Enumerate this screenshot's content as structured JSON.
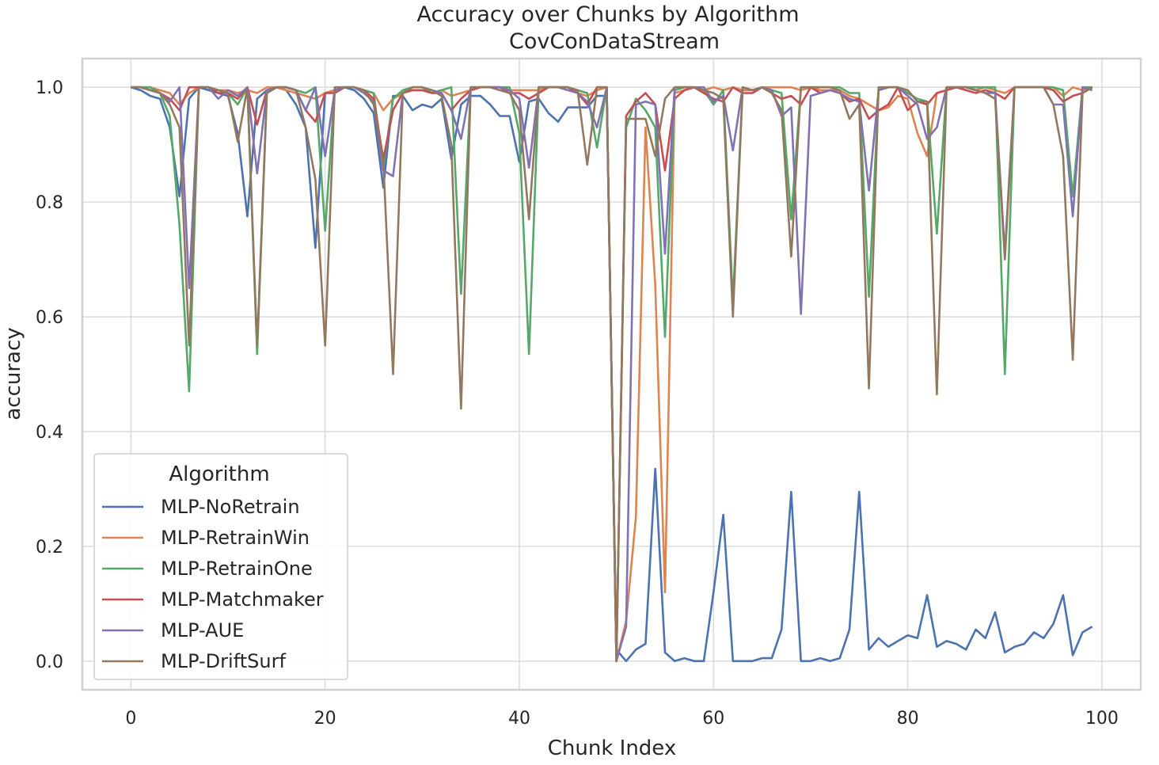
{
  "chart_data": {
    "type": "line",
    "title": "Accuracy over Chunks by Algorithm",
    "subtitle": "CovConDataStream",
    "xlabel": "Chunk Index",
    "ylabel": "accuracy",
    "xlim": [
      -5,
      104
    ],
    "ylim": [
      -0.05,
      1.05
    ],
    "xticks": [
      0,
      20,
      40,
      60,
      80,
      100
    ],
    "yticks": [
      0.0,
      0.2,
      0.4,
      0.6,
      0.8,
      1.0
    ],
    "xtick_labels": [
      "0",
      "20",
      "40",
      "60",
      "80",
      "100"
    ],
    "ytick_labels": [
      "0.0",
      "0.2",
      "0.4",
      "0.6",
      "0.8",
      "1.0"
    ],
    "grid": true,
    "legend": {
      "title": "Algorithm",
      "placement": "lower-left"
    },
    "series": [
      {
        "name": "MLP-NoRetrain",
        "color": "#4c72b0",
        "x": [
          0,
          1,
          2,
          3,
          4,
          5,
          6,
          7,
          8,
          9,
          10,
          11,
          12,
          13,
          14,
          15,
          16,
          17,
          18,
          19,
          20,
          21,
          22,
          23,
          24,
          25,
          26,
          27,
          28,
          29,
          30,
          31,
          32,
          33,
          34,
          35,
          36,
          37,
          38,
          39,
          40,
          41,
          42,
          43,
          44,
          45,
          46,
          47,
          48,
          49,
          50,
          51,
          52,
          53,
          54,
          55,
          56,
          57,
          58,
          59,
          60,
          61,
          62,
          63,
          64,
          65,
          66,
          67,
          68,
          69,
          70,
          71,
          72,
          73,
          74,
          75,
          76,
          77,
          78,
          79,
          80,
          81,
          82,
          83,
          84,
          85,
          86,
          87,
          88,
          89,
          90,
          91,
          92,
          93,
          94,
          95,
          96,
          97,
          98,
          99
        ],
        "values": [
          1.0,
          0.995,
          0.985,
          0.98,
          0.93,
          0.81,
          0.98,
          1.0,
          0.995,
          0.99,
          0.985,
          0.92,
          0.775,
          0.98,
          0.995,
          1.0,
          0.995,
          0.97,
          0.93,
          0.72,
          0.99,
          0.995,
          1.0,
          0.995,
          0.98,
          0.955,
          0.825,
          0.985,
          0.985,
          0.96,
          0.97,
          0.965,
          0.98,
          0.875,
          0.97,
          0.985,
          0.985,
          0.97,
          0.95,
          0.95,
          0.87,
          0.975,
          0.98,
          0.955,
          0.94,
          0.965,
          0.965,
          0.965,
          0.985,
          0.985,
          0.02,
          0.0,
          0.02,
          0.03,
          0.335,
          0.015,
          0.0,
          0.005,
          0.0,
          0.0,
          0.12,
          0.255,
          0.0,
          0.0,
          0.0,
          0.005,
          0.005,
          0.055,
          0.295,
          0.0,
          0.0,
          0.005,
          0.0,
          0.005,
          0.055,
          0.295,
          0.02,
          0.04,
          0.025,
          0.035,
          0.045,
          0.04,
          0.115,
          0.025,
          0.035,
          0.03,
          0.02,
          0.055,
          0.04,
          0.085,
          0.015,
          0.025,
          0.03,
          0.05,
          0.04,
          0.065,
          0.115,
          0.01,
          0.05,
          0.06
        ]
      },
      {
        "name": "MLP-RetrainWin",
        "color": "#dd8452",
        "x": [
          0,
          1,
          2,
          3,
          4,
          5,
          6,
          7,
          8,
          9,
          10,
          11,
          12,
          13,
          14,
          15,
          16,
          17,
          18,
          19,
          20,
          21,
          22,
          23,
          24,
          25,
          26,
          27,
          28,
          29,
          30,
          31,
          32,
          33,
          34,
          35,
          36,
          37,
          38,
          39,
          40,
          41,
          42,
          43,
          44,
          45,
          46,
          47,
          48,
          49,
          50,
          51,
          52,
          53,
          54,
          55,
          56,
          57,
          58,
          59,
          60,
          61,
          62,
          63,
          64,
          65,
          66,
          67,
          68,
          69,
          70,
          71,
          72,
          73,
          74,
          75,
          76,
          77,
          78,
          79,
          80,
          81,
          82,
          83,
          84,
          85,
          86,
          87,
          88,
          89,
          90,
          91,
          92,
          93,
          94,
          95,
          96,
          97,
          98,
          99
        ],
        "values": [
          1.0,
          1.0,
          1.0,
          0.995,
          0.99,
          0.97,
          0.99,
          1.0,
          1.0,
          0.995,
          0.995,
          0.99,
          0.995,
          0.99,
          1.0,
          1.0,
          0.995,
          0.99,
          0.985,
          0.98,
          0.99,
          0.995,
          1.0,
          1.0,
          0.995,
          0.99,
          0.96,
          0.98,
          0.99,
          0.995,
          0.995,
          0.99,
          0.995,
          0.985,
          0.99,
          0.995,
          1.0,
          1.0,
          1.0,
          0.995,
          0.995,
          0.995,
          0.995,
          1.0,
          1.0,
          1.0,
          0.99,
          0.985,
          0.995,
          1.0,
          0.0,
          0.07,
          0.25,
          0.93,
          0.655,
          0.12,
          0.99,
          0.995,
          1.0,
          0.995,
          1.0,
          0.995,
          1.0,
          0.995,
          0.995,
          1.0,
          1.0,
          1.0,
          1.0,
          0.995,
          1.0,
          0.995,
          0.995,
          0.995,
          0.985,
          0.98,
          0.97,
          0.96,
          0.965,
          0.985,
          0.98,
          0.92,
          0.88,
          0.99,
          0.995,
          1.0,
          1.0,
          0.995,
          1.0,
          0.995,
          0.99,
          1.0,
          1.0,
          1.0,
          1.0,
          1.0,
          0.985,
          1.0,
          0.995,
          1.0
        ]
      },
      {
        "name": "MLP-RetrainOne",
        "color": "#55a868",
        "x": [
          0,
          1,
          2,
          3,
          4,
          5,
          6,
          7,
          8,
          9,
          10,
          11,
          12,
          13,
          14,
          15,
          16,
          17,
          18,
          19,
          20,
          21,
          22,
          23,
          24,
          25,
          26,
          27,
          28,
          29,
          30,
          31,
          32,
          33,
          34,
          35,
          36,
          37,
          38,
          39,
          40,
          41,
          42,
          43,
          44,
          45,
          46,
          47,
          48,
          49,
          50,
          51,
          52,
          53,
          54,
          55,
          56,
          57,
          58,
          59,
          60,
          61,
          62,
          63,
          64,
          65,
          66,
          67,
          68,
          69,
          70,
          71,
          72,
          73,
          74,
          75,
          76,
          77,
          78,
          79,
          80,
          81,
          82,
          83,
          84,
          85,
          86,
          87,
          88,
          89,
          90,
          91,
          92,
          93,
          94,
          95,
          96,
          97,
          98,
          99
        ],
        "values": [
          1.0,
          1.0,
          1.0,
          0.99,
          0.95,
          0.76,
          0.47,
          1.0,
          1.0,
          0.995,
          0.99,
          0.97,
          1.0,
          0.535,
          0.99,
          1.0,
          1.0,
          0.995,
          0.99,
          1.0,
          0.75,
          1.0,
          1.0,
          1.0,
          0.995,
          0.99,
          0.86,
          0.98,
          0.995,
          1.0,
          1.0,
          0.99,
          0.995,
          1.0,
          0.64,
          1.0,
          1.0,
          1.0,
          1.0,
          1.0,
          0.92,
          0.535,
          1.0,
          1.0,
          1.0,
          1.0,
          0.995,
          0.99,
          0.895,
          1.0,
          0.0,
          0.93,
          0.98,
          0.96,
          0.93,
          0.565,
          0.995,
          1.0,
          1.0,
          0.995,
          0.97,
          0.995,
          0.625,
          1.0,
          0.995,
          1.0,
          0.995,
          0.99,
          0.77,
          1.0,
          1.0,
          1.0,
          1.0,
          1.0,
          0.99,
          0.99,
          0.635,
          0.995,
          1.0,
          1.0,
          0.99,
          0.98,
          0.975,
          0.745,
          1.0,
          1.0,
          1.0,
          1.0,
          1.0,
          1.0,
          0.5,
          1.0,
          1.0,
          1.0,
          1.0,
          1.0,
          0.995,
          0.81,
          1.0,
          1.0
        ]
      },
      {
        "name": "MLP-Matchmaker",
        "color": "#c44e52",
        "x": [
          0,
          1,
          2,
          3,
          4,
          5,
          6,
          7,
          8,
          9,
          10,
          11,
          12,
          13,
          14,
          15,
          16,
          17,
          18,
          19,
          20,
          21,
          22,
          23,
          24,
          25,
          26,
          27,
          28,
          29,
          30,
          31,
          32,
          33,
          34,
          35,
          36,
          37,
          38,
          39,
          40,
          41,
          42,
          43,
          44,
          45,
          46,
          47,
          48,
          49,
          50,
          51,
          52,
          53,
          54,
          55,
          56,
          57,
          58,
          59,
          60,
          61,
          62,
          63,
          64,
          65,
          66,
          67,
          68,
          69,
          70,
          71,
          72,
          73,
          74,
          75,
          76,
          77,
          78,
          79,
          80,
          81,
          82,
          83,
          84,
          85,
          86,
          87,
          88,
          89,
          90,
          91,
          92,
          93,
          94,
          95,
          96,
          97,
          98,
          99
        ],
        "values": [
          1.0,
          1.0,
          0.995,
          0.99,
          0.98,
          0.96,
          1.0,
          1.0,
          1.0,
          0.99,
          0.99,
          0.98,
          1.0,
          0.935,
          0.995,
          1.0,
          1.0,
          0.995,
          0.96,
          0.94,
          0.99,
          0.99,
          1.0,
          1.0,
          0.995,
          0.98,
          0.875,
          0.96,
          0.99,
          0.995,
          0.995,
          0.99,
          0.99,
          0.96,
          0.98,
          0.995,
          1.0,
          1.0,
          1.0,
          0.99,
          0.99,
          0.98,
          0.99,
          1.0,
          1.0,
          1.0,
          0.99,
          0.97,
          1.0,
          1.0,
          0.0,
          0.95,
          0.975,
          0.99,
          0.97,
          0.855,
          0.98,
          0.995,
          1.0,
          0.99,
          0.98,
          0.975,
          1.0,
          0.99,
          0.99,
          1.0,
          0.99,
          0.98,
          0.985,
          0.97,
          1.0,
          0.99,
          0.995,
          0.99,
          0.975,
          0.98,
          0.945,
          0.96,
          0.97,
          1.0,
          0.96,
          0.975,
          0.97,
          0.99,
          0.995,
          1.0,
          0.995,
          0.99,
          0.995,
          0.99,
          0.98,
          1.0,
          1.0,
          1.0,
          1.0,
          0.995,
          0.975,
          0.985,
          0.99,
          1.0
        ]
      },
      {
        "name": "MLP-AUE",
        "color": "#8172b3",
        "x": [
          0,
          1,
          2,
          3,
          4,
          5,
          6,
          7,
          8,
          9,
          10,
          11,
          12,
          13,
          14,
          15,
          16,
          17,
          18,
          19,
          20,
          21,
          22,
          23,
          24,
          25,
          26,
          27,
          28,
          29,
          30,
          31,
          32,
          33,
          34,
          35,
          36,
          37,
          38,
          39,
          40,
          41,
          42,
          43,
          44,
          45,
          46,
          47,
          48,
          49,
          50,
          51,
          52,
          53,
          54,
          55,
          56,
          57,
          58,
          59,
          60,
          61,
          62,
          63,
          64,
          65,
          66,
          67,
          68,
          69,
          70,
          71,
          72,
          73,
          74,
          75,
          76,
          77,
          78,
          79,
          80,
          81,
          82,
          83,
          84,
          85,
          86,
          87,
          88,
          89,
          90,
          91,
          92,
          93,
          94,
          95,
          96,
          97,
          98,
          99
        ],
        "values": [
          1.0,
          1.0,
          0.995,
          0.99,
          0.975,
          1.0,
          0.65,
          1.0,
          1.0,
          0.98,
          0.995,
          0.985,
          1.0,
          0.85,
          0.995,
          1.0,
          1.0,
          0.995,
          0.96,
          1.0,
          0.88,
          0.995,
          1.0,
          1.0,
          0.99,
          0.975,
          0.855,
          0.845,
          0.99,
          1.0,
          1.0,
          0.995,
          0.99,
          0.96,
          0.91,
          1.0,
          1.0,
          1.0,
          1.0,
          0.995,
          0.98,
          0.86,
          1.0,
          1.0,
          1.0,
          0.995,
          0.99,
          0.975,
          0.93,
          1.0,
          0.0,
          0.06,
          0.97,
          0.975,
          0.97,
          0.71,
          1.0,
          1.0,
          1.0,
          1.0,
          0.975,
          0.985,
          0.89,
          1.0,
          0.995,
          1.0,
          0.995,
          0.95,
          0.965,
          0.605,
          0.985,
          0.99,
          0.995,
          0.99,
          0.98,
          0.975,
          0.82,
          0.995,
          1.0,
          1.0,
          0.985,
          0.97,
          0.91,
          0.93,
          1.0,
          1.0,
          1.0,
          0.995,
          0.99,
          0.99,
          0.71,
          1.0,
          1.0,
          1.0,
          1.0,
          0.97,
          0.97,
          0.775,
          1.0,
          0.995
        ]
      },
      {
        "name": "MLP-DriftSurf",
        "color": "#937860",
        "x": [
          0,
          1,
          2,
          3,
          4,
          5,
          6,
          7,
          8,
          9,
          10,
          11,
          12,
          13,
          14,
          15,
          16,
          17,
          18,
          19,
          20,
          21,
          22,
          23,
          24,
          25,
          26,
          27,
          28,
          29,
          30,
          31,
          32,
          33,
          34,
          35,
          36,
          37,
          38,
          39,
          40,
          41,
          42,
          43,
          44,
          45,
          46,
          47,
          48,
          49,
          50,
          51,
          52,
          53,
          54,
          55,
          56,
          57,
          58,
          59,
          60,
          61,
          62,
          63,
          64,
          65,
          66,
          67,
          68,
          69,
          70,
          71,
          72,
          73,
          74,
          75,
          76,
          77,
          78,
          79,
          80,
          81,
          82,
          83,
          84,
          85,
          86,
          87,
          88,
          89,
          90,
          91,
          92,
          93,
          94,
          95,
          96,
          97,
          98,
          99
        ],
        "values": [
          1.0,
          1.0,
          0.995,
          0.99,
          0.97,
          0.93,
          0.55,
          1.0,
          1.0,
          0.995,
          0.99,
          0.905,
          1.0,
          0.55,
          0.99,
          1.0,
          1.0,
          0.995,
          0.93,
          0.84,
          0.55,
          1.0,
          1.0,
          1.0,
          0.995,
          0.97,
          0.87,
          0.5,
          0.99,
          1.0,
          1.0,
          0.995,
          0.985,
          0.9,
          0.44,
          1.0,
          1.0,
          1.0,
          0.995,
          0.99,
          0.96,
          0.77,
          1.0,
          1.0,
          1.0,
          1.0,
          0.995,
          0.865,
          1.0,
          1.0,
          0.0,
          0.945,
          0.945,
          0.945,
          0.88,
          0.98,
          1.0,
          1.0,
          1.0,
          0.995,
          0.99,
          0.98,
          0.6,
          1.0,
          0.995,
          1.0,
          0.99,
          0.96,
          0.705,
          1.0,
          1.0,
          1.0,
          1.0,
          0.995,
          0.945,
          0.97,
          0.475,
          1.0,
          1.0,
          1.0,
          0.995,
          0.975,
          0.975,
          0.465,
          1.0,
          1.0,
          1.0,
          0.995,
          0.99,
          0.98,
          0.7,
          1.0,
          1.0,
          1.0,
          1.0,
          0.97,
          0.88,
          0.525,
          0.99,
          1.0
        ]
      }
    ]
  }
}
